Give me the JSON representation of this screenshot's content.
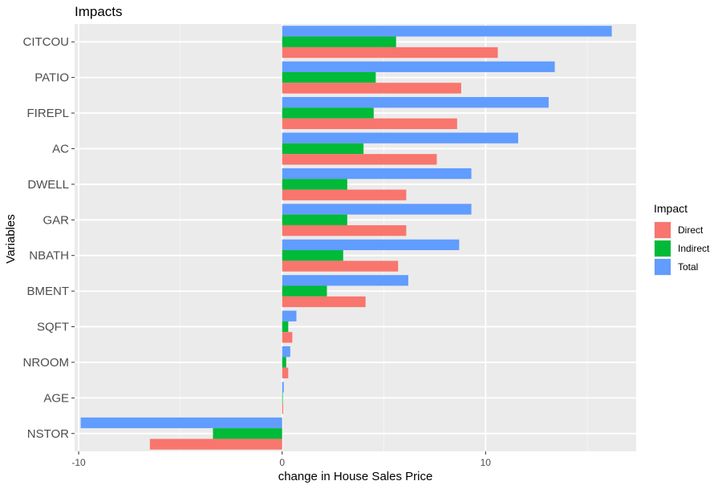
{
  "chart_data": {
    "type": "bar",
    "orientation": "horizontal",
    "title": "Impacts",
    "xlabel": "change in House Sales Price",
    "ylabel": "Variables",
    "xlim": [
      -10.2,
      17.4
    ],
    "xticks": [
      -10,
      0,
      10
    ],
    "grid": true,
    "legend_title": "Impact",
    "legend_position": "right",
    "categories": [
      "CITCOU",
      "PATIO",
      "FIREPL",
      "AC",
      "DWELL",
      "GAR",
      "NBATH",
      "BMENT",
      "SQFT",
      "NROOM",
      "AGE",
      "NSTOR"
    ],
    "series": [
      {
        "name": "Direct",
        "color": "#F8766D",
        "values": [
          10.6,
          8.8,
          8.6,
          7.6,
          6.1,
          6.1,
          5.7,
          4.1,
          0.5,
          0.3,
          0.05,
          -6.5
        ]
      },
      {
        "name": "Indirect",
        "color": "#00BA38",
        "values": [
          5.6,
          4.6,
          4.5,
          4.0,
          3.2,
          3.2,
          3.0,
          2.2,
          0.3,
          0.2,
          0.03,
          -3.4
        ]
      },
      {
        "name": "Total",
        "color": "#619CFF",
        "values": [
          16.2,
          13.4,
          13.1,
          11.6,
          9.3,
          9.3,
          8.7,
          6.2,
          0.7,
          0.4,
          0.08,
          -9.9
        ]
      }
    ]
  }
}
